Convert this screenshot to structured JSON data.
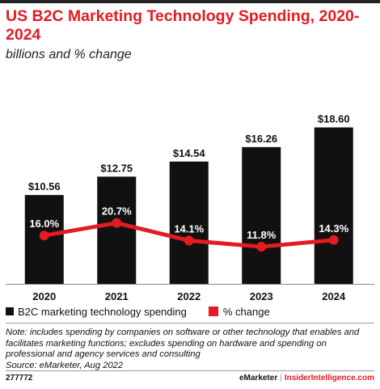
{
  "header": {
    "title": "US B2C Marketing Technology Spending, 2020-2024",
    "subtitle": "billions and % change"
  },
  "legend": {
    "bar_label": "B2C marketing technology spending",
    "line_label": "% change"
  },
  "footnote": {
    "note": "Note: includes spending by companies on software or other technology that enables and facilitates marketing functions; excludes spending on hardware and spending on professional and agency services and consulting",
    "source": "Source: eMarketer, Aug 2022"
  },
  "footer": {
    "chart_id": "277772",
    "brand_left": "eMarketer",
    "separator": "|",
    "brand_right": "InsiderIntelligence.com"
  },
  "colors": {
    "accent": "#e31b23",
    "bar": "#111111",
    "line": "#e31b23"
  },
  "chart_data": {
    "type": "bar",
    "categories": [
      "2020",
      "2021",
      "2022",
      "2023",
      "2024"
    ],
    "series": [
      {
        "name": "B2C marketing technology spending",
        "type": "bar",
        "values": [
          10.56,
          12.75,
          14.54,
          16.26,
          18.6
        ],
        "labels": [
          "$10.56",
          "$12.75",
          "$14.54",
          "$16.26",
          "$18.60"
        ]
      },
      {
        "name": "% change",
        "type": "line",
        "values": [
          16.0,
          20.7,
          14.1,
          11.8,
          14.3
        ],
        "labels": [
          "16.0%",
          "20.7%",
          "14.1%",
          "11.8%",
          "14.3%"
        ]
      }
    ],
    "title": "US B2C Marketing Technology Spending, 2020-2024",
    "subtitle": "billions and % change",
    "xlabel": "",
    "ylabel": "",
    "grid": false,
    "legend_position": "bottom-left"
  }
}
